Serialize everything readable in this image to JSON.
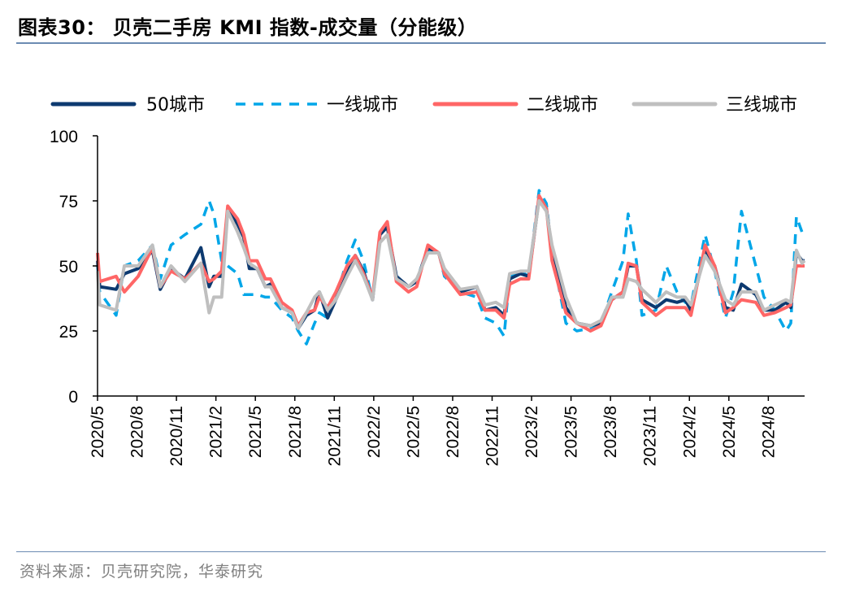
{
  "header": {
    "title": "图表30：  贝壳二手房 KMI 指数-成交量（分能级）"
  },
  "footer": {
    "source": "资料来源：贝壳研究院，华泰研究"
  },
  "chart_data": {
    "type": "line",
    "title": "",
    "xlabel": "",
    "ylabel": "",
    "ylim": [
      0,
      100
    ],
    "yticks": [
      "0",
      "25",
      "50",
      "75",
      "100"
    ],
    "xticks": [
      "2020/5",
      "2020/8",
      "2020/11",
      "2021/2",
      "2021/5",
      "2021/8",
      "2021/11",
      "2022/2",
      "2022/5",
      "2022/8",
      "2022/11",
      "2023/2",
      "2023/5",
      "2023/8",
      "2023/11",
      "2024/2",
      "2024/5",
      "2024/8"
    ],
    "xlim": [
      "2020-05-01",
      "2024-10-22"
    ],
    "grid": false,
    "legend_position": "top",
    "x": [
      "2020-05-01",
      "2020-05-06",
      "2020-06-13",
      "2020-07-02",
      "2020-08-03",
      "2020-09-05",
      "2020-09-23",
      "2020-10-18",
      "2020-11-19",
      "2020-12-26",
      "2021-01-14",
      "2021-01-25",
      "2021-02-12",
      "2021-02-26",
      "2021-03-21",
      "2021-04-04",
      "2021-04-17",
      "2021-05-05",
      "2021-05-24",
      "2021-06-05",
      "2021-07-01",
      "2021-07-25",
      "2021-08-08",
      "2021-08-27",
      "2021-09-15",
      "2021-09-26",
      "2021-10-15",
      "2021-11-03",
      "2021-11-29",
      "2021-12-18",
      "2022-01-06",
      "2022-01-27",
      "2022-02-13",
      "2022-03-02",
      "2022-03-23",
      "2022-04-20",
      "2022-05-09",
      "2022-06-04",
      "2022-06-29",
      "2022-07-12",
      "2022-08-18",
      "2022-09-25",
      "2022-10-14",
      "2022-11-08",
      "2022-11-27",
      "2022-12-10",
      "2023-01-04",
      "2023-01-23",
      "2023-02-16",
      "2023-03-05",
      "2023-03-18",
      "2023-04-19",
      "2023-05-14",
      "2023-06-15",
      "2023-07-09",
      "2023-08-03",
      "2023-08-29",
      "2023-09-10",
      "2023-09-29",
      "2023-10-12",
      "2023-11-13",
      "2023-12-07",
      "2024-01-01",
      "2024-01-20",
      "2024-02-02",
      "2024-03-06",
      "2024-03-28",
      "2024-04-22",
      "2024-05-10",
      "2024-05-29",
      "2024-07-01",
      "2024-07-20",
      "2024-08-14",
      "2024-09-09",
      "2024-09-20",
      "2024-10-03",
      "2024-10-16",
      "2024-10-22"
    ],
    "series": [
      {
        "name": "50城市",
        "color": "#0d3a70",
        "style": "solid",
        "values": [
          52,
          42,
          41,
          47,
          49,
          56,
          41,
          49,
          45,
          57,
          42,
          46,
          46,
          72,
          66,
          61,
          49,
          49,
          42,
          43,
          34,
          32,
          26,
          31,
          33,
          40,
          30,
          37,
          47,
          54,
          48,
          37,
          62,
          65,
          46,
          42,
          44,
          57,
          55,
          48,
          40,
          42,
          33,
          34,
          31,
          45,
          47,
          46,
          76,
          72,
          56,
          34,
          28,
          27,
          28,
          37,
          40,
          50,
          50,
          37,
          34,
          37,
          36,
          37,
          33,
          56,
          50,
          34,
          33,
          43,
          39,
          33,
          33,
          36,
          34,
          55,
          52,
          52
        ]
      },
      {
        "name": "一线城市",
        "color": "#00a6e8",
        "style": "dashed",
        "values": [
          50,
          40,
          31,
          50,
          52,
          58,
          45,
          58,
          62,
          66,
          75,
          70,
          52,
          50,
          47,
          39,
          39,
          39,
          38,
          38,
          33,
          30,
          25,
          20,
          28,
          32,
          30,
          38,
          52,
          60,
          52,
          37,
          62,
          66,
          45,
          42,
          45,
          56,
          55,
          46,
          40,
          38,
          30,
          28,
          23,
          46,
          48,
          46,
          79,
          74,
          55,
          28,
          25,
          26,
          28,
          40,
          52,
          70,
          52,
          31,
          33,
          50,
          40,
          36,
          35,
          62,
          48,
          30,
          40,
          71,
          50,
          38,
          33,
          25,
          28,
          69,
          63,
          64
        ]
      },
      {
        "name": "二线城市",
        "color": "#ff6666",
        "style": "solid",
        "values": [
          55,
          44,
          46,
          40,
          46,
          57,
          42,
          48,
          45,
          51,
          44,
          45,
          48,
          73,
          68,
          62,
          52,
          52,
          45,
          45,
          36,
          33,
          27,
          32,
          33,
          38,
          34,
          40,
          50,
          54,
          47,
          38,
          63,
          67,
          44,
          40,
          42,
          58,
          55,
          47,
          39,
          40,
          33,
          33,
          30,
          43,
          45,
          45,
          77,
          72,
          52,
          32,
          28,
          25,
          27,
          37,
          40,
          51,
          50,
          36,
          31,
          34,
          34,
          34,
          31,
          58,
          50,
          32,
          34,
          37,
          36,
          31,
          32,
          34,
          35,
          50,
          50,
          50
        ]
      },
      {
        "name": "三线城市",
        "color": "#bfbfbf",
        "style": "solid",
        "values": [
          48,
          35,
          33,
          50,
          50,
          58,
          42,
          50,
          44,
          51,
          32,
          38,
          38,
          71,
          63,
          57,
          51,
          49,
          42,
          42,
          34,
          32,
          26,
          32,
          38,
          40,
          33,
          37,
          46,
          52,
          46,
          37,
          59,
          62,
          45,
          42,
          45,
          55,
          55,
          49,
          41,
          42,
          35,
          36,
          34,
          47,
          48,
          48,
          75,
          71,
          58,
          38,
          28,
          27,
          29,
          38,
          38,
          45,
          44,
          41,
          36,
          40,
          38,
          38,
          35,
          54,
          48,
          37,
          35,
          40,
          40,
          33,
          35,
          37,
          36,
          56,
          51,
          52
        ]
      }
    ]
  }
}
